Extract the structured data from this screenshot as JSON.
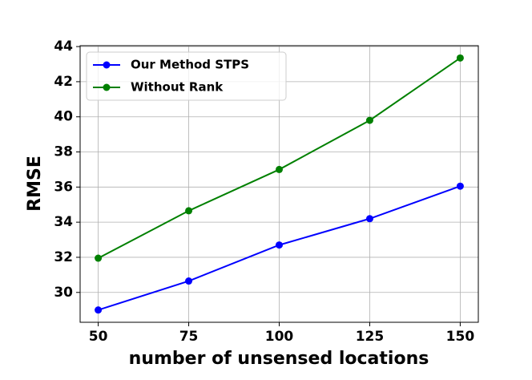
{
  "chart_data": {
    "type": "line",
    "x_label": "number of unsensed locations",
    "y_label": "RMSE",
    "x": [
      50,
      75,
      100,
      125,
      150
    ],
    "series": [
      {
        "name": "Our Method STPS",
        "color": "#0000ff",
        "values": [
          29.0,
          30.65,
          32.7,
          34.2,
          36.05
        ]
      },
      {
        "name": "Without Rank",
        "color": "#008000",
        "values": [
          31.95,
          34.65,
          37.0,
          39.8,
          43.35
        ]
      }
    ],
    "xlim": [
      45,
      155
    ],
    "ylim": [
      28.3,
      44.05
    ],
    "xticks": [
      50,
      75,
      100,
      125,
      150
    ],
    "yticks": [
      30,
      32,
      34,
      36,
      38,
      40,
      42,
      44
    ],
    "grid": true,
    "legend_position": "upper-left"
  }
}
